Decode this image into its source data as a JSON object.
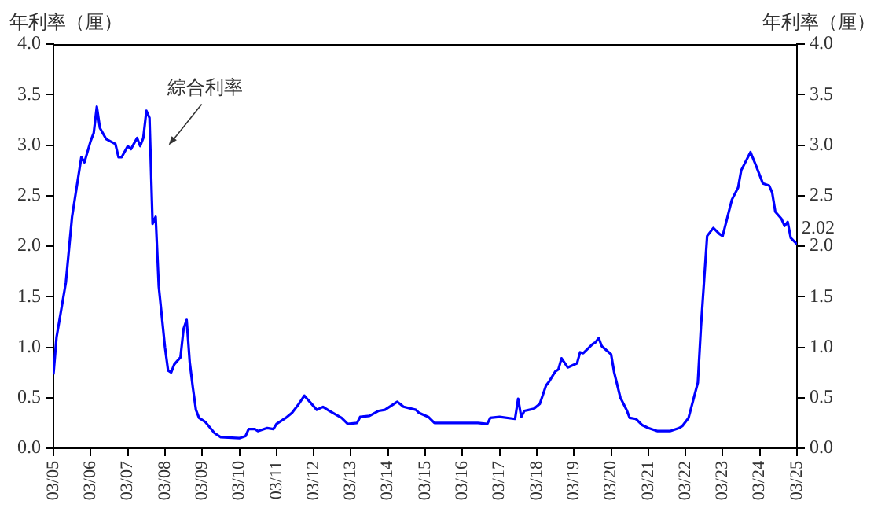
{
  "chart_data": {
    "type": "line",
    "ylabel": "年利率（厘）",
    "y2label": "年利率（厘）",
    "x": [
      "2005-03",
      "2005-04",
      "2005-07",
      "2005-09",
      "2005-12",
      "2006-01",
      "2006-03",
      "2006-04",
      "2006-05",
      "2006-06",
      "2006-08",
      "2006-11",
      "2006-12",
      "2007-01",
      "2007-03",
      "2007-04",
      "2007-06",
      "2007-07",
      "2007-08",
      "2007-09",
      "2007-10",
      "2007-11",
      "2007-12",
      "2008-01",
      "2008-03",
      "2008-04",
      "2008-05",
      "2008-06",
      "2008-08",
      "2008-09",
      "2008-10",
      "2008-11",
      "2008-12",
      "2009-01",
      "2009-02",
      "2009-04",
      "2009-07",
      "2009-09",
      "2010-03",
      "2010-05",
      "2010-06",
      "2010-08",
      "2010-09",
      "2010-12",
      "2011-02",
      "2011-03",
      "2011-06",
      "2011-08",
      "2011-10",
      "2011-12",
      "2012-02",
      "2012-04",
      "2012-06",
      "2012-08",
      "2012-12",
      "2013-02",
      "2013-05",
      "2013-06",
      "2013-09",
      "2013-12",
      "2014-02",
      "2014-06",
      "2014-08",
      "2014-12",
      "2015-01",
      "2015-04",
      "2015-06",
      "2015-08",
      "2016-03",
      "2016-08",
      "2016-11",
      "2016-12",
      "2017-03",
      "2017-08",
      "2017-09",
      "2017-10",
      "2017-11",
      "2018-02",
      "2018-04",
      "2018-06",
      "2018-07",
      "2018-09",
      "2018-10",
      "2018-11",
      "2019-01",
      "2019-04",
      "2019-05",
      "2019-06",
      "2019-09",
      "2019-10",
      "2019-11",
      "2019-12",
      "2020-03",
      "2020-04",
      "2020-06",
      "2020-08",
      "2020-09",
      "2020-11",
      "2021-01",
      "2021-03",
      "2021-06",
      "2021-10",
      "2022-01",
      "2022-02",
      "2022-04",
      "2022-07",
      "2022-08",
      "2022-10",
      "2022-12",
      "2023-02",
      "2023-03",
      "2023-06",
      "2023-08",
      "2023-09",
      "2023-12",
      "2024-02",
      "2024-04",
      "2024-06",
      "2024-07",
      "2024-08",
      "2024-10",
      "2024-11",
      "2024-12",
      "2025-01",
      "2025-03"
    ],
    "series": [
      {
        "color": "#0000ff",
        "value_labels": [
          null,
          null,
          null,
          null,
          null,
          null,
          null,
          null,
          null,
          null,
          null,
          null,
          null,
          null,
          null,
          null,
          null,
          null,
          null,
          null,
          null,
          null,
          null,
          null,
          null,
          null,
          null,
          null,
          null,
          null,
          null,
          null,
          null,
          null,
          null,
          null,
          null,
          null,
          null,
          null,
          null,
          null,
          null,
          null,
          null,
          null,
          null,
          null,
          null,
          null,
          null,
          null,
          null,
          null,
          null,
          null,
          null,
          null,
          null,
          null,
          null,
          null,
          null,
          null,
          null,
          null,
          null,
          null,
          null,
          null,
          null,
          null,
          null,
          null,
          null,
          null,
          null,
          null,
          null,
          null,
          null,
          null,
          null,
          null,
          null,
          null,
          null,
          null,
          null,
          null,
          null,
          null,
          null,
          null,
          null,
          null,
          null,
          null,
          null,
          null,
          null,
          null,
          null,
          null,
          null,
          null,
          null,
          null,
          null,
          null,
          null,
          null,
          null,
          null,
          null,
          null,
          null,
          null,
          null,
          null,
          null,
          null,
          null,
          null,
          "2.02"
        ],
        "values": [
          0.73,
          1.1,
          1.64,
          2.29,
          2.88,
          2.83,
          3.04,
          3.12,
          3.38,
          3.17,
          3.06,
          3.01,
          2.88,
          2.88,
          2.99,
          2.96,
          3.07,
          2.99,
          3.07,
          3.34,
          3.27,
          2.22,
          2.29,
          1.6,
          1.0,
          0.77,
          0.75,
          0.83,
          0.9,
          1.18,
          1.27,
          0.85,
          0.6,
          0.38,
          0.3,
          0.26,
          0.15,
          0.11,
          0.1,
          0.12,
          0.19,
          0.19,
          0.17,
          0.2,
          0.19,
          0.24,
          0.3,
          0.35,
          0.43,
          0.52,
          0.45,
          0.38,
          0.41,
          0.37,
          0.3,
          0.24,
          0.25,
          0.31,
          0.32,
          0.37,
          0.38,
          0.46,
          0.41,
          0.38,
          0.35,
          0.31,
          0.25,
          0.25,
          0.25,
          0.25,
          0.24,
          0.3,
          0.31,
          0.29,
          0.49,
          0.31,
          0.37,
          0.39,
          0.44,
          0.62,
          0.66,
          0.76,
          0.78,
          0.89,
          0.8,
          0.84,
          0.95,
          0.94,
          1.03,
          1.05,
          1.09,
          1.01,
          0.93,
          0.75,
          0.5,
          0.38,
          0.3,
          0.29,
          0.23,
          0.2,
          0.17,
          0.17,
          0.2,
          0.22,
          0.3,
          0.65,
          1.2,
          2.1,
          2.18,
          2.12,
          2.1,
          2.46,
          2.58,
          2.75,
          2.93,
          2.78,
          2.62,
          2.6,
          2.53,
          2.34,
          2.27,
          2.2,
          2.24,
          2.08,
          2.02
        ]
      }
    ],
    "xlim": [
      "2005-03",
      "2025-03"
    ],
    "xticks": [
      {
        "value": "2005-03",
        "label": "03/05"
      },
      {
        "value": "2006-03",
        "label": "03/06"
      },
      {
        "value": "2007-03",
        "label": "03/07"
      },
      {
        "value": "2008-03",
        "label": "03/08"
      },
      {
        "value": "2009-03",
        "label": "03/09"
      },
      {
        "value": "2010-03",
        "label": "03/10"
      },
      {
        "value": "2011-03",
        "label": "03/11"
      },
      {
        "value": "2012-03",
        "label": "03/12"
      },
      {
        "value": "2013-03",
        "label": "03/13"
      },
      {
        "value": "2014-03",
        "label": "03/14"
      },
      {
        "value": "2015-03",
        "label": "03/15"
      },
      {
        "value": "2016-03",
        "label": "03/16"
      },
      {
        "value": "2017-03",
        "label": "03/17"
      },
      {
        "value": "2018-03",
        "label": "03/18"
      },
      {
        "value": "2019-03",
        "label": "03/19"
      },
      {
        "value": "2020-03",
        "label": "03/20"
      },
      {
        "value": "2021-03",
        "label": "03/21"
      },
      {
        "value": "2022-03",
        "label": "03/22"
      },
      {
        "value": "2023-03",
        "label": "03/23"
      },
      {
        "value": "2024-03",
        "label": "03/24"
      },
      {
        "value": "2025-03",
        "label": "03/25"
      }
    ],
    "ylim": [
      0,
      4
    ],
    "yticks": [
      {
        "value": 0,
        "label": "0.0"
      },
      {
        "value": 0.5,
        "label": "0.5"
      },
      {
        "value": 1,
        "label": "1.0"
      },
      {
        "value": 1.5,
        "label": "1.5"
      },
      {
        "value": 2,
        "label": "2.0"
      },
      {
        "value": 2.5,
        "label": "2.5"
      },
      {
        "value": 3,
        "label": "3.0"
      },
      {
        "value": 3.5,
        "label": "3.5"
      },
      {
        "value": 4,
        "label": "4.0"
      }
    ],
    "y2lim": [
      0,
      4
    ],
    "y2ticks": [
      {
        "value": 0,
        "label": "0.0"
      },
      {
        "value": 0.5,
        "label": "0.5"
      },
      {
        "value": 1,
        "label": "1.0"
      },
      {
        "value": 1.5,
        "label": "1.5"
      },
      {
        "value": 2,
        "label": "2.0"
      },
      {
        "value": 2.5,
        "label": "2.5"
      },
      {
        "value": 3,
        "label": "3.0"
      },
      {
        "value": 3.5,
        "label": "3.5"
      },
      {
        "value": 4,
        "label": "4.0"
      }
    ],
    "annotations": [
      "綜合利率"
    ],
    "grid": false,
    "legend": false,
    "marker": "none",
    "line_style": "solid"
  }
}
